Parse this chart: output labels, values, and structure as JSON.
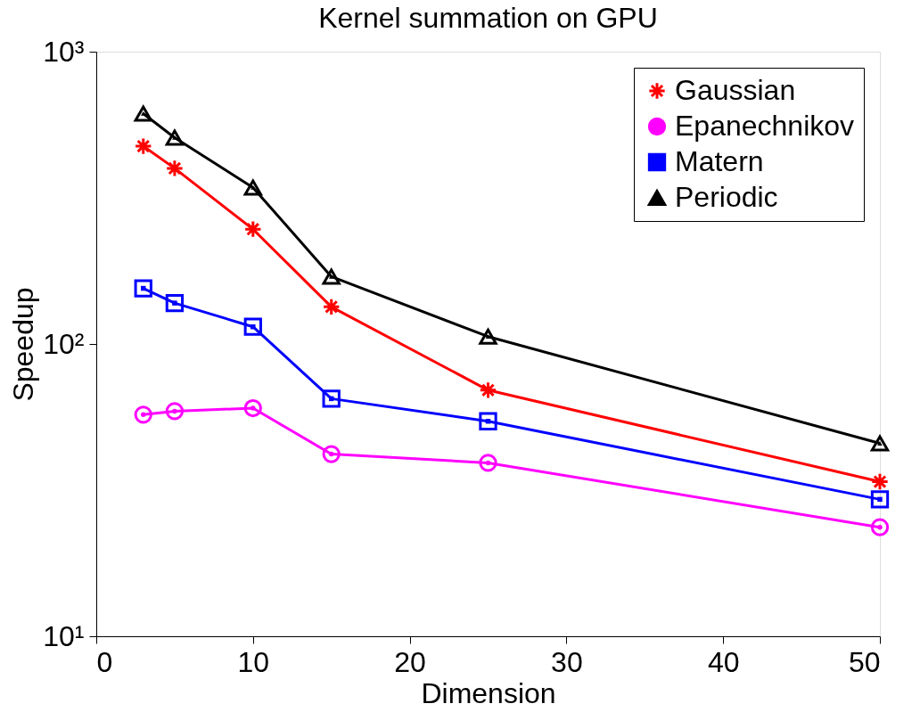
{
  "chart_data": {
    "type": "line",
    "title": "Kernel summation on GPU",
    "xlabel": "Dimension",
    "ylabel": "Speedup",
    "x": [
      3,
      5,
      10,
      15,
      25,
      50
    ],
    "series": [
      {
        "name": "Gaussian",
        "color": "#ff0000",
        "marker": "cross",
        "values": [
          475,
          399,
          247,
          134,
          69.5,
          33.8
        ]
      },
      {
        "name": "Epanechnikov",
        "color": "#ff00ff",
        "marker": "circle",
        "values": [
          57.3,
          58.9,
          60.3,
          42,
          39.2,
          23.6
        ]
      },
      {
        "name": "Matern",
        "color": "#0000ff",
        "marker": "square",
        "values": [
          155,
          138,
          114.5,
          65,
          54.4,
          29.4
        ]
      },
      {
        "name": "Periodic",
        "color": "#000000",
        "marker": "triangle",
        "values": [
          614,
          508,
          343,
          170,
          106,
          45.7
        ]
      }
    ],
    "log": "y",
    "xlim": [
      0,
      50
    ],
    "xticks": [
      0,
      10,
      20,
      30,
      40,
      50
    ],
    "ylim": [
      10,
      1000
    ],
    "yticks": [
      {
        "value": 10,
        "label": "10¹"
      },
      {
        "value": 100,
        "label": "10²"
      },
      {
        "value": 1000,
        "label": "10³"
      }
    ],
    "grid": false,
    "legend": "top right",
    "line_style": "solid"
  }
}
